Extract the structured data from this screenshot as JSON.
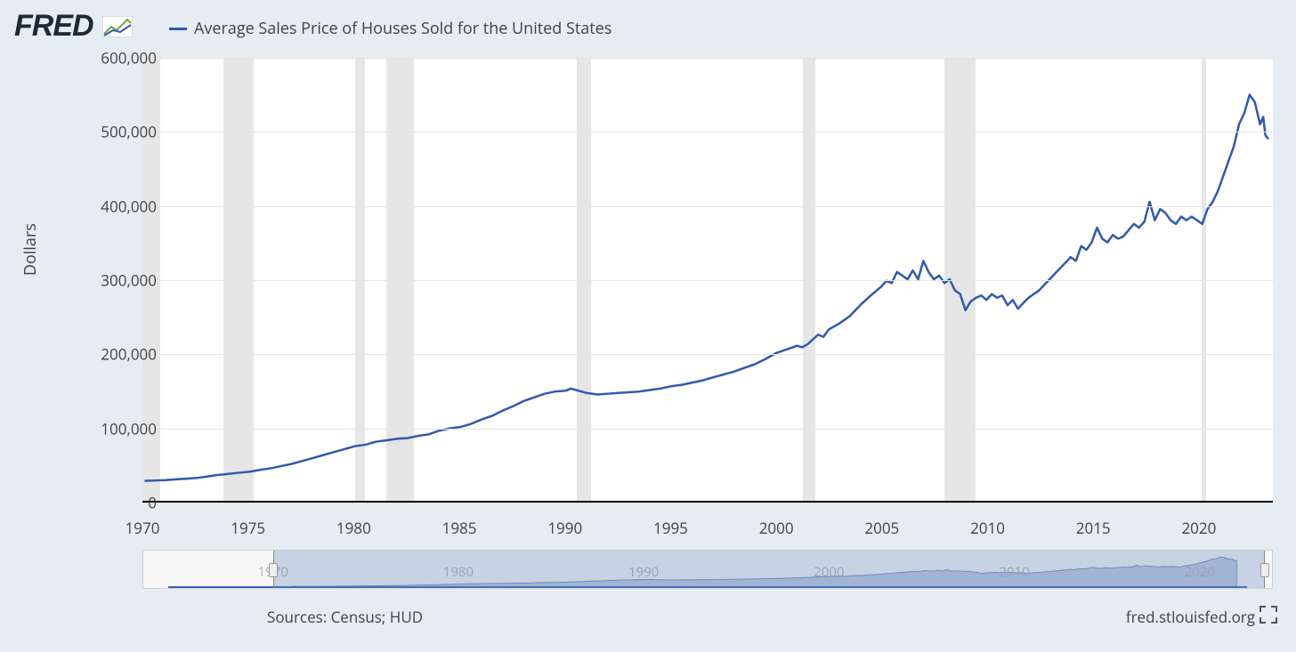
{
  "brand": "FRED",
  "legend": {
    "label": "Average Sales Price of Houses Sold for the United States",
    "color": "#3059b0"
  },
  "chart": {
    "type": "line",
    "ylabel": "Dollars",
    "line_color": "#3059b0",
    "line_width": 2.5,
    "background_color": "#ffffff",
    "page_background": "#e5ecf2",
    "grid_color": "#e5e5e5",
    "recession_color": "#e5e5e5",
    "xlim": [
      1970,
      2023.5
    ],
    "ylim": [
      0,
      600000
    ],
    "ytick_step": 100000,
    "yticks": [
      0,
      100000,
      200000,
      300000,
      400000,
      500000,
      600000
    ],
    "ytick_labels": [
      "0",
      "100,000",
      "200,000",
      "300,000",
      "400,000",
      "500,000",
      "600,000"
    ],
    "xtick_step": 5,
    "xticks": [
      1970,
      1975,
      1980,
      1985,
      1990,
      1995,
      2000,
      2005,
      2010,
      2015,
      2020
    ],
    "label_fontsize": 17,
    "recessions": [
      [
        1970.0,
        1970.85
      ],
      [
        1973.85,
        1975.25
      ],
      [
        1980.05,
        1980.55
      ],
      [
        1981.55,
        1982.85
      ],
      [
        1990.55,
        1991.25
      ],
      [
        2001.25,
        2001.85
      ],
      [
        2007.95,
        2009.45
      ],
      [
        2020.15,
        2020.35
      ]
    ],
    "series": [
      [
        1970.0,
        27000
      ],
      [
        1970.5,
        27500
      ],
      [
        1971.0,
        28000
      ],
      [
        1971.5,
        29000
      ],
      [
        1972.0,
        30000
      ],
      [
        1972.5,
        31000
      ],
      [
        1973.0,
        33000
      ],
      [
        1973.5,
        35000
      ],
      [
        1974.0,
        36500
      ],
      [
        1974.5,
        38000
      ],
      [
        1975.0,
        39500
      ],
      [
        1975.5,
        42000
      ],
      [
        1976.0,
        44000
      ],
      [
        1976.5,
        47000
      ],
      [
        1977.0,
        50000
      ],
      [
        1977.5,
        54000
      ],
      [
        1978.0,
        58000
      ],
      [
        1978.5,
        62000
      ],
      [
        1979.0,
        66000
      ],
      [
        1979.5,
        70000
      ],
      [
        1980.0,
        74000
      ],
      [
        1980.5,
        76000
      ],
      [
        1981.0,
        80000
      ],
      [
        1981.5,
        82000
      ],
      [
        1982.0,
        84000
      ],
      [
        1982.5,
        85000
      ],
      [
        1983.0,
        88000
      ],
      [
        1983.5,
        90000
      ],
      [
        1984.0,
        95000
      ],
      [
        1984.5,
        98000
      ],
      [
        1985.0,
        100000
      ],
      [
        1985.5,
        104000
      ],
      [
        1986.0,
        110000
      ],
      [
        1986.5,
        115000
      ],
      [
        1987.0,
        122000
      ],
      [
        1987.5,
        128000
      ],
      [
        1988.0,
        135000
      ],
      [
        1988.5,
        140000
      ],
      [
        1989.0,
        145000
      ],
      [
        1989.5,
        148000
      ],
      [
        1990.0,
        149000
      ],
      [
        1990.25,
        152000
      ],
      [
        1990.5,
        150000
      ],
      [
        1991.0,
        146000
      ],
      [
        1991.5,
        144000
      ],
      [
        1992.0,
        145000
      ],
      [
        1992.5,
        146000
      ],
      [
        1993.0,
        147000
      ],
      [
        1993.5,
        148000
      ],
      [
        1994.0,
        150000
      ],
      [
        1994.5,
        152000
      ],
      [
        1995.0,
        155000
      ],
      [
        1995.5,
        157000
      ],
      [
        1996.0,
        160000
      ],
      [
        1996.5,
        163000
      ],
      [
        1997.0,
        167000
      ],
      [
        1997.5,
        171000
      ],
      [
        1998.0,
        175000
      ],
      [
        1998.5,
        180000
      ],
      [
        1999.0,
        185000
      ],
      [
        1999.5,
        192000
      ],
      [
        2000.0,
        200000
      ],
      [
        2000.5,
        205000
      ],
      [
        2001.0,
        210000
      ],
      [
        2001.25,
        208000
      ],
      [
        2001.5,
        212000
      ],
      [
        2002.0,
        225000
      ],
      [
        2002.25,
        222000
      ],
      [
        2002.5,
        232000
      ],
      [
        2003.0,
        240000
      ],
      [
        2003.5,
        250000
      ],
      [
        2004.0,
        265000
      ],
      [
        2004.5,
        278000
      ],
      [
        2005.0,
        290000
      ],
      [
        2005.25,
        298000
      ],
      [
        2005.5,
        295000
      ],
      [
        2005.75,
        310000
      ],
      [
        2006.0,
        305000
      ],
      [
        2006.25,
        300000
      ],
      [
        2006.5,
        312000
      ],
      [
        2006.75,
        300000
      ],
      [
        2007.0,
        325000
      ],
      [
        2007.25,
        310000
      ],
      [
        2007.5,
        300000
      ],
      [
        2007.75,
        305000
      ],
      [
        2008.0,
        295000
      ],
      [
        2008.25,
        300000
      ],
      [
        2008.5,
        285000
      ],
      [
        2008.75,
        280000
      ],
      [
        2009.0,
        258000
      ],
      [
        2009.25,
        270000
      ],
      [
        2009.5,
        275000
      ],
      [
        2009.75,
        278000
      ],
      [
        2010.0,
        272000
      ],
      [
        2010.25,
        280000
      ],
      [
        2010.5,
        275000
      ],
      [
        2010.75,
        278000
      ],
      [
        2011.0,
        265000
      ],
      [
        2011.25,
        272000
      ],
      [
        2011.5,
        260000
      ],
      [
        2011.75,
        268000
      ],
      [
        2012.0,
        275000
      ],
      [
        2012.5,
        285000
      ],
      [
        2013.0,
        300000
      ],
      [
        2013.5,
        315000
      ],
      [
        2014.0,
        330000
      ],
      [
        2014.25,
        325000
      ],
      [
        2014.5,
        345000
      ],
      [
        2014.75,
        340000
      ],
      [
        2015.0,
        350000
      ],
      [
        2015.25,
        370000
      ],
      [
        2015.5,
        355000
      ],
      [
        2015.75,
        350000
      ],
      [
        2016.0,
        360000
      ],
      [
        2016.25,
        355000
      ],
      [
        2016.5,
        358000
      ],
      [
        2017.0,
        375000
      ],
      [
        2017.25,
        370000
      ],
      [
        2017.5,
        378000
      ],
      [
        2017.75,
        405000
      ],
      [
        2018.0,
        380000
      ],
      [
        2018.25,
        395000
      ],
      [
        2018.5,
        390000
      ],
      [
        2018.75,
        380000
      ],
      [
        2019.0,
        375000
      ],
      [
        2019.25,
        385000
      ],
      [
        2019.5,
        380000
      ],
      [
        2019.75,
        385000
      ],
      [
        2020.0,
        380000
      ],
      [
        2020.25,
        375000
      ],
      [
        2020.5,
        395000
      ],
      [
        2020.75,
        405000
      ],
      [
        2021.0,
        420000
      ],
      [
        2021.25,
        440000
      ],
      [
        2021.5,
        460000
      ],
      [
        2021.75,
        480000
      ],
      [
        2022.0,
        510000
      ],
      [
        2022.25,
        525000
      ],
      [
        2022.5,
        550000
      ],
      [
        2022.75,
        540000
      ],
      [
        2023.0,
        510000
      ],
      [
        2023.15,
        520000
      ],
      [
        2023.25,
        495000
      ],
      [
        2023.4,
        490000
      ]
    ]
  },
  "navigator": {
    "xlim": [
      1963,
      2024
    ],
    "ticks": [
      1970,
      1980,
      1990,
      2000,
      2010,
      2020
    ],
    "selection": [
      1970,
      2023.5
    ],
    "fill_color": "#8fa6cf",
    "line_color": "#6d87b8"
  },
  "footer": {
    "sources": "Sources: Census; HUD",
    "site": "fred.stlouisfed.org"
  }
}
